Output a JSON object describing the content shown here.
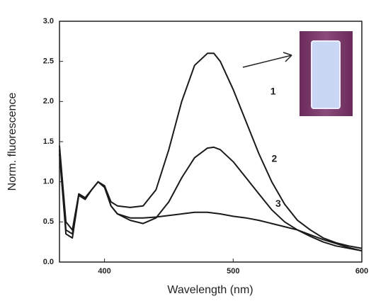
{
  "chart_data": {
    "type": "line",
    "xlabel": "Wavelength (nm)",
    "ylabel": "Norm. fluorescence",
    "x": [
      365,
      370,
      375,
      380,
      385,
      390,
      395,
      400,
      405,
      410,
      420,
      430,
      440,
      450,
      460,
      470,
      480,
      485,
      490,
      500,
      510,
      520,
      530,
      540,
      550,
      560,
      570,
      580,
      590,
      600
    ],
    "series": [
      {
        "name": "1",
        "color": "#1a1a1a",
        "values": [
          1.45,
          0.5,
          0.4,
          0.85,
          0.8,
          0.9,
          1.0,
          0.95,
          0.75,
          0.7,
          0.68,
          0.7,
          0.9,
          1.4,
          2.0,
          2.45,
          2.6,
          2.6,
          2.5,
          2.15,
          1.75,
          1.35,
          1.0,
          0.72,
          0.52,
          0.4,
          0.3,
          0.24,
          0.2,
          0.17
        ]
      },
      {
        "name": "2",
        "color": "#1a1a1a",
        "values": [
          1.4,
          0.4,
          0.35,
          0.85,
          0.8,
          0.9,
          1.0,
          0.95,
          0.7,
          0.6,
          0.52,
          0.48,
          0.55,
          0.75,
          1.05,
          1.3,
          1.42,
          1.43,
          1.4,
          1.25,
          1.05,
          0.85,
          0.65,
          0.5,
          0.4,
          0.32,
          0.25,
          0.2,
          0.17,
          0.14
        ]
      },
      {
        "name": "3",
        "color": "#1a1a1a",
        "values": [
          1.35,
          0.35,
          0.3,
          0.83,
          0.78,
          0.9,
          1.0,
          0.93,
          0.7,
          0.6,
          0.55,
          0.55,
          0.56,
          0.58,
          0.6,
          0.62,
          0.62,
          0.61,
          0.6,
          0.57,
          0.55,
          0.52,
          0.48,
          0.44,
          0.4,
          0.34,
          0.28,
          0.23,
          0.18,
          0.14
        ]
      }
    ],
    "xlim": [
      365,
      600
    ],
    "xticks": [
      400,
      500,
      600
    ],
    "ylim": [
      0,
      3
    ],
    "yticks": [
      {
        "value": 0,
        "label": "0.0"
      },
      0.5,
      {
        "value": 1,
        "label": "1.0"
      },
      1.5,
      {
        "value": 2,
        "label": "2.0"
      },
      2.5,
      {
        "value": 3,
        "label": "3.0"
      }
    ]
  }
}
